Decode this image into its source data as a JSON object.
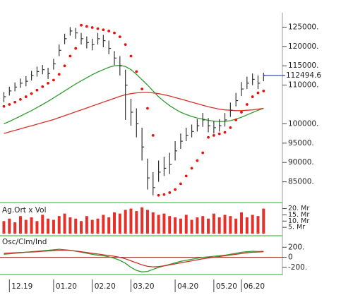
{
  "chart_data": [
    {
      "type": "ohlc",
      "xlim": [
        -0.7,
        47.6
      ],
      "xticks": [
        {
          "value": 1,
          "label": "12.19"
        },
        {
          "value": 9,
          "label": "01.20"
        },
        {
          "value": 16,
          "label": "02.20"
        },
        {
          "value": 23,
          "label": "03.20"
        },
        {
          "value": 31,
          "label": "04.20"
        },
        {
          "value": 38,
          "label": "05.20"
        },
        {
          "value": 43,
          "label": "06.20"
        }
      ],
      "ylim": [
        80000,
        128000
      ],
      "yticks": [
        {
          "value": 85000,
          "label": "85000."
        },
        {
          "value": 90000,
          "label": "90000."
        },
        {
          "value": 95000,
          "label": "95000."
        },
        {
          "value": 100000,
          "label": "100000."
        },
        {
          "value": 110000,
          "label": "110000."
        },
        {
          "value": 115000,
          "label": "115000."
        },
        {
          "value": 120000,
          "label": "120000."
        },
        {
          "value": 125000,
          "label": "125000."
        }
      ],
      "color": "#333333",
      "last_color": "#1a3fa8",
      "high": [
        108200,
        109600,
        110700,
        111700,
        112300,
        113700,
        114800,
        115200,
        114500,
        116800,
        120500,
        123300,
        125000,
        124800,
        123500,
        122600,
        122000,
        123500,
        123000,
        121500,
        118800,
        117500,
        114000,
        106500,
        104000,
        99000,
        91000,
        87500,
        90500,
        91500,
        92500,
        95500,
        97500,
        99000,
        99800,
        101200,
        102800,
        101500,
        100800,
        101200,
        102800,
        105500,
        108000,
        110800,
        112200,
        113000,
        112500,
        113200
      ],
      "low": [
        105600,
        107300,
        108400,
        109300,
        109700,
        111200,
        112200,
        112800,
        111600,
        114000,
        117500,
        120600,
        122800,
        122000,
        120500,
        119500,
        119000,
        120500,
        119800,
        118000,
        115200,
        112500,
        101000,
        99500,
        96500,
        90500,
        83000,
        81500,
        85000,
        86500,
        87000,
        90500,
        93500,
        95500,
        96500,
        98000,
        99200,
        97800,
        97500,
        98000,
        99300,
        101800,
        104500,
        107200,
        109000,
        110000,
        109000,
        111000
      ],
      "close": [
        107000,
        108500,
        109500,
        110500,
        111000,
        112500,
        113500,
        114000,
        113000,
        115500,
        119000,
        122000,
        124000,
        123500,
        122000,
        121000,
        120500,
        122000,
        121500,
        119500,
        117000,
        115000,
        110000,
        103000,
        100000,
        94000,
        86000,
        83500,
        87500,
        88500,
        89500,
        93000,
        95500,
        97000,
        98000,
        99500,
        101000,
        99500,
        99000,
        99500,
        101000,
        103500,
        106000,
        109000,
        110500,
        111500,
        110500,
        112494.6
      ],
      "series": [
        {
          "style": "dots",
          "color": "#e8120c",
          "values": [
            104500,
            105000,
            105600,
            106300,
            107000,
            107800,
            108700,
            109600,
            110500,
            111300,
            112800,
            115000,
            117500,
            119500,
            125500,
            125200,
            124900,
            124600,
            124300,
            124000,
            123500,
            122500,
            120500,
            117500,
            113500,
            109000,
            104000,
            97000,
            81500,
            81700,
            82200,
            83000,
            84500,
            86500,
            88500,
            90500,
            92500,
            96500,
            97000,
            97400,
            97800,
            99000,
            101000,
            103000,
            105000,
            107000,
            108000,
            108500
          ]
        },
        {
          "style": "line",
          "color": "#2f9e2f",
          "values": [
            100000,
            100600,
            101300,
            102000,
            102700,
            103400,
            104200,
            105000,
            105800,
            106700,
            107600,
            108500,
            109400,
            110300,
            111100,
            111900,
            112700,
            113400,
            114000,
            114600,
            115000,
            115100,
            114800,
            114000,
            112800,
            111400,
            110000,
            108500,
            107000,
            105800,
            104700,
            103800,
            103000,
            102400,
            101900,
            101500,
            101200,
            100900,
            100700,
            100600,
            100600,
            100800,
            101200,
            101700,
            102300,
            102900,
            103500,
            104000
          ]
        },
        {
          "style": "line",
          "color": "#d8302a",
          "values": [
            97500,
            97900,
            98300,
            98700,
            99100,
            99500,
            99900,
            100300,
            100700,
            101100,
            101600,
            102100,
            102600,
            103100,
            103600,
            104100,
            104600,
            105100,
            105600,
            106100,
            106600,
            107100,
            107500,
            107800,
            108000,
            108100,
            108100,
            108000,
            107800,
            107500,
            107200,
            106800,
            106400,
            106000,
            105600,
            105200,
            104800,
            104400,
            104100,
            103800,
            103600,
            103500,
            103400,
            103400,
            103500,
            103600,
            103800,
            104000
          ]
        }
      ]
    },
    {
      "type": "bar",
      "label": "Ag.Ort x Vol",
      "color": "#e8302a",
      "ylim": [
        0,
        22
      ],
      "yticks": [
        {
          "value": 5,
          "label": "5. Mr"
        },
        {
          "value": 10,
          "label": "10. Mr"
        },
        {
          "value": 15,
          "label": "15. Mr"
        },
        {
          "value": 20,
          "label": "20. Mr"
        }
      ],
      "values": [
        10,
        12,
        9,
        14,
        11,
        13,
        10,
        15,
        12,
        11,
        14,
        16,
        13,
        12,
        10,
        14,
        11,
        12,
        15,
        13,
        17,
        16,
        19,
        20,
        18,
        21,
        19,
        17,
        15,
        16,
        14,
        13,
        12,
        15,
        11,
        13,
        14,
        12,
        16,
        13,
        15,
        14,
        12,
        17,
        13,
        15,
        14,
        20
      ]
    },
    {
      "type": "line",
      "label": "Osc/Clm/Ind",
      "ylim": [
        -300,
        260
      ],
      "yticks": [
        {
          "value": -200,
          "label": "-200."
        },
        0,
        {
          "value": 200,
          "label": "200."
        }
      ],
      "series": [
        {
          "color": "#2f9e2f",
          "values": [
            60,
            70,
            80,
            90,
            100,
            110,
            120,
            130,
            140,
            150,
            160,
            150,
            140,
            120,
            100,
            80,
            60,
            40,
            30,
            10,
            -20,
            -60,
            -120,
            -200,
            -260,
            -290,
            -280,
            -240,
            -200,
            -170,
            -140,
            -110,
            -80,
            -60,
            -40,
            -20,
            0,
            10,
            20,
            30,
            40,
            60,
            80,
            100,
            110,
            120,
            115,
            120
          ]
        },
        {
          "color": "#c8302a",
          "values": [
            80,
            85,
            90,
            95,
            100,
            105,
            110,
            120,
            125,
            130,
            140,
            140,
            135,
            125,
            110,
            95,
            80,
            65,
            50,
            35,
            20,
            0,
            -30,
            -70,
            -110,
            -150,
            -180,
            -190,
            -185,
            -170,
            -150,
            -130,
            -110,
            -90,
            -70,
            -50,
            -30,
            -15,
            0,
            15,
            30,
            45,
            60,
            75,
            90,
            100,
            105,
            110
          ]
        }
      ]
    }
  ]
}
